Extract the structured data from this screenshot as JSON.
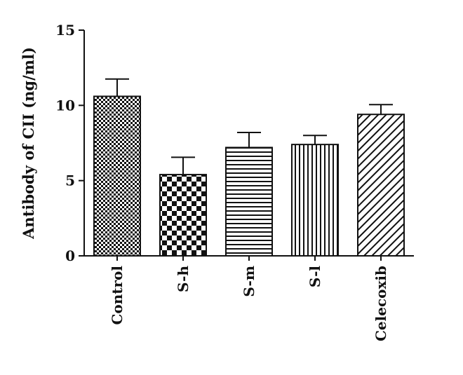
{
  "chart_data": {
    "type": "bar",
    "title": "",
    "xlabel": "",
    "ylabel": "Antibody of CII (ng/ml)",
    "categories": [
      "Control",
      "S-h",
      "S-m",
      "S-l",
      "Celecoxib"
    ],
    "values": [
      10.6,
      5.4,
      7.2,
      7.4,
      9.4
    ],
    "error": [
      1.15,
      1.15,
      1.0,
      0.6,
      0.65
    ],
    "patterns": [
      "fine-checker",
      "coarse-checker",
      "horizontal-lines",
      "vertical-lines",
      "diagonal-lines"
    ],
    "ylim": [
      0,
      15
    ],
    "yticks": [
      0,
      5,
      10,
      15
    ],
    "grid": false,
    "legend": "none",
    "colors": {
      "ink": "#111111",
      "background": "#ffffff"
    }
  }
}
